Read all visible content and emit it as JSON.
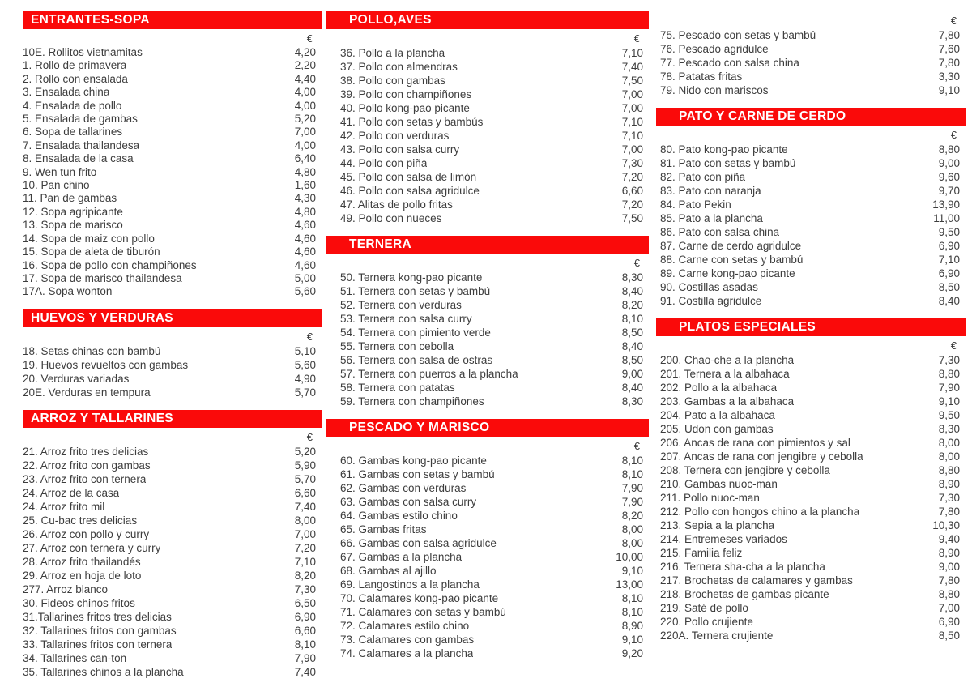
{
  "currency": "€",
  "theme": {
    "accent": "#fa0a0a",
    "header_text": "#ffffff",
    "body_text": "#3d3d3d",
    "background": "#ffffff"
  },
  "columns": [
    {
      "sections": [
        {
          "title": "ENTRANTES-SOPA",
          "items": [
            {
              "name": "10E. Rollitos vietnamitas",
              "price": "4,20"
            },
            {
              "name": "1. Rollo de primavera",
              "price": "2,20"
            },
            {
              "name": "2. Rollo con ensalada",
              "price": "4,40"
            },
            {
              "name": "3. Ensalada china",
              "price": "4,00"
            },
            {
              "name": "4. Ensalada de pollo",
              "price": "4,00"
            },
            {
              "name": "5. Ensalada de gambas",
              "price": "5,20"
            },
            {
              "name": "6. Sopa de tallarines",
              "price": "7,00"
            },
            {
              "name": "7. Ensalada thailandesa",
              "price": "4,00"
            },
            {
              "name": "8. Ensalada de la casa",
              "price": "6,40"
            },
            {
              "name": "9. Wen tun frito",
              "price": "4,80"
            },
            {
              "name": "10. Pan chino",
              "price": "1,60"
            },
            {
              "name": "11. Pan de gambas",
              "price": "4,30"
            },
            {
              "name": "12. Sopa agripicante",
              "price": "4,80"
            },
            {
              "name": "13. Sopa de marisco",
              "price": "4,60"
            },
            {
              "name": "14. Sopa de maiz con pollo",
              "price": "4,60"
            },
            {
              "name": "15. Sopa de aleta de tiburón",
              "price": "4,60"
            },
            {
              "name": "16. Sopa de pollo con champiñones",
              "price": "4,60"
            },
            {
              "name": "17. Sopa de marisco thailandesa",
              "price": "5,00"
            },
            {
              "name": "17A. Sopa wonton",
              "price": "5,60"
            }
          ]
        },
        {
          "title": "HUEVOS Y VERDURAS",
          "items": [
            {
              "name": "18. Setas chinas con bambú",
              "price": "5,10"
            },
            {
              "name": "19. Huevos revueltos con gambas",
              "price": "5,60"
            },
            {
              "name": "20. Verduras variadas",
              "price": "4,90"
            },
            {
              "name": "20E. Verduras en tempura",
              "price": "5,70"
            }
          ]
        },
        {
          "title": "ARROZ Y TALLARINES",
          "items": [
            {
              "name": "21. Arroz frito tres delicias",
              "price": "5,20"
            },
            {
              "name": "22. Arroz frito con gambas",
              "price": "5,90"
            },
            {
              "name": "23. Arroz frito con ternera",
              "price": "5,70"
            },
            {
              "name": "24. Arroz de la casa",
              "price": "6,60"
            },
            {
              "name": "24. Arroz frito mil",
              "price": "7,40"
            },
            {
              "name": "25. Cu-bac tres delicias",
              "price": "8,00"
            },
            {
              "name": "26. Arroz con pollo y curry",
              "price": "7,00"
            },
            {
              "name": "27. Arroz con ternera y curry",
              "price": "7,20"
            },
            {
              "name": "28. Arroz frito thailandés",
              "price": "7,10"
            },
            {
              "name": "29. Arroz en hoja de loto",
              "price": "8,20"
            },
            {
              "name": "277. Arroz blanco",
              "price": "7,30"
            },
            {
              "name": "30. Fideos chinos fritos",
              "price": "6,50"
            },
            {
              "name": "31.Tallarines fritos tres delicias",
              "price": "6,90"
            },
            {
              "name": "32. Tallarines fritos con gambas",
              "price": "6,60"
            },
            {
              "name": "33. Tallarines fritos con ternera",
              "price": "8,10"
            },
            {
              "name": "34. Tallarines can-ton",
              "price": "7,90"
            },
            {
              "name": "35. Tallarines chinos a la plancha",
              "price": "7,40"
            }
          ]
        }
      ]
    },
    {
      "sections": [
        {
          "title": "POLLO,AVES",
          "items": [
            {
              "name": "36. Pollo a la plancha",
              "price": "7,10"
            },
            {
              "name": "37. Pollo con almendras",
              "price": "7,40"
            },
            {
              "name": "38. Pollo con gambas",
              "price": "7,50"
            },
            {
              "name": "39. Pollo con champiñones",
              "price": "7,00"
            },
            {
              "name": "40. Pollo kong-pao picante",
              "price": "7,00"
            },
            {
              "name": "41. Pollo con setas y bambús",
              "price": "7,10"
            },
            {
              "name": "42. Pollo con verduras",
              "price": "7,10"
            },
            {
              "name": "43. Pollo con salsa curry",
              "price": "7,00"
            },
            {
              "name": "44. Pollo con piña",
              "price": "7,30"
            },
            {
              "name": "45. Pollo con salsa de limón",
              "price": "7,20"
            },
            {
              "name": "46. Pollo con salsa agridulce",
              "price": "6,60"
            },
            {
              "name": "47. Alitas de pollo fritas",
              "price": "7,20"
            },
            {
              "name": "49. Pollo con nueces",
              "price": "7,50"
            }
          ]
        },
        {
          "title": "TERNERA",
          "items": [
            {
              "name": "50. Ternera kong-pao picante",
              "price": "8,30"
            },
            {
              "name": "51. Ternera con setas y bambú",
              "price": "8,40"
            },
            {
              "name": "52. Ternera con verduras",
              "price": "8,20"
            },
            {
              "name": "53. Ternera con salsa curry",
              "price": "8,10"
            },
            {
              "name": "54. Ternera con pimiento verde",
              "price": "8,50"
            },
            {
              "name": "55. Ternera con cebolla",
              "price": "8,40"
            },
            {
              "name": "56. Ternera con salsa de ostras",
              "price": "8,50"
            },
            {
              "name": "57. Ternera con puerros a la plancha",
              "price": "9,00"
            },
            {
              "name": "58. Ternera con patatas",
              "price": "8,40"
            },
            {
              "name": "59. Ternera con champiñones",
              "price": "8,30"
            }
          ]
        },
        {
          "title": "PESCADO Y MARISCO",
          "items": [
            {
              "name": "60. Gambas kong-pao picante",
              "price": "8,10"
            },
            {
              "name": "61. Gambas con setas y bambú",
              "price": "8,10"
            },
            {
              "name": "62. Gambas con verduras",
              "price": "7,90"
            },
            {
              "name": "63. Gambas con salsa curry",
              "price": "7,90"
            },
            {
              "name": "64. Gambas estilo chino",
              "price": "8,20"
            },
            {
              "name": "65. Gambas fritas",
              "price": "8,00"
            },
            {
              "name": "66. Gambas con salsa agridulce",
              "price": "8,00"
            },
            {
              "name": "67. Gambas a la plancha",
              "price": "10,00"
            },
            {
              "name": "68. Gambas al ajillo",
              "price": "9,10"
            },
            {
              "name": "69. Langostinos a la plancha",
              "price": "13,00"
            },
            {
              "name": "70. Calamares kong-pao picante",
              "price": "8,10"
            },
            {
              "name": "71. Calamares con setas y bambú",
              "price": "8,10"
            },
            {
              "name": "72. Calamares estilo chino",
              "price": "8,90"
            },
            {
              "name": "73. Calamares con gambas",
              "price": "9,10"
            },
            {
              "name": "74. Calamares a la plancha",
              "price": "9,20"
            }
          ]
        }
      ]
    },
    {
      "sections": [
        {
          "title": null,
          "items": [
            {
              "name": "75. Pescado con setas y bambú",
              "price": "7,80"
            },
            {
              "name": "76. Pescado agridulce",
              "price": "7,60"
            },
            {
              "name": "77. Pescado con salsa china",
              "price": "7,80"
            },
            {
              "name": "78. Patatas fritas",
              "price": "3,30"
            },
            {
              "name": "79. Nido con mariscos",
              "price": "9,10"
            }
          ]
        },
        {
          "title": "PATO Y CARNE DE CERDO",
          "items": [
            {
              "name": "80. Pato kong-pao picante",
              "price": "8,80"
            },
            {
              "name": "81. Pato con setas y bambú",
              "price": "9,00"
            },
            {
              "name": "82. Pato con piña",
              "price": "9,60"
            },
            {
              "name": "83. Pato con naranja",
              "price": "9,70"
            },
            {
              "name": "84. Pato Pekin",
              "price": "13,90"
            },
            {
              "name": "85. Pato a la plancha",
              "price": "11,00"
            },
            {
              "name": "86. Pato con salsa china",
              "price": "9,50"
            },
            {
              "name": "87. Carne de cerdo agridulce",
              "price": "6,90"
            },
            {
              "name": "88. Carne con setas y bambú",
              "price": "7,10"
            },
            {
              "name": "89. Carne kong-pao picante",
              "price": "6,90"
            },
            {
              "name": "90. Costillas asadas",
              "price": "8,50"
            },
            {
              "name": "91. Costilla agridulce",
              "price": "8,40"
            }
          ]
        },
        {
          "title": "PLATOS ESPECIALES",
          "items": [
            {
              "name": "200. Chao-che a la plancha",
              "price": "7,30"
            },
            {
              "name": "201. Ternera a la albahaca",
              "price": "8,80"
            },
            {
              "name": "202. Pollo a la albahaca",
              "price": "7,90"
            },
            {
              "name": "203. Gambas a la albahaca",
              "price": "9,10"
            },
            {
              "name": "204. Pato a la albahaca",
              "price": "9,50"
            },
            {
              "name": "205. Udon con gambas",
              "price": "8,30"
            },
            {
              "name": "206. Ancas de rana con pimientos y sal",
              "price": "8,00"
            },
            {
              "name": "207. Ancas de rana con jengibre y cebolla",
              "price": "8,00"
            },
            {
              "name": "208. Ternera con jengibre y cebolla",
              "price": "8,80"
            },
            {
              "name": "210. Gambas nuoc-man",
              "price": "8,90"
            },
            {
              "name": "211. Pollo nuoc-man",
              "price": "7,30"
            },
            {
              "name": "212. Pollo con hongos chino a la plancha",
              "price": "7,80"
            },
            {
              "name": "213. Sepia a la plancha",
              "price": "10,30"
            },
            {
              "name": "214. Entremeses variados",
              "price": "9,40"
            },
            {
              "name": "215. Familia feliz",
              "price": "8,90"
            },
            {
              "name": "216. Ternera sha-cha a la plancha",
              "price": "9,00"
            },
            {
              "name": "217. Brochetas de calamares y gambas",
              "price": "7,80"
            },
            {
              "name": "218. Brochetas de gambas picante",
              "price": "8,80"
            },
            {
              "name": "219. Saté de pollo",
              "price": "7,00"
            },
            {
              "name": "220. Pollo crujiente",
              "price": "6,90"
            },
            {
              "name": "220A. Ternera crujiente",
              "price": "8,50"
            }
          ]
        }
      ]
    }
  ]
}
